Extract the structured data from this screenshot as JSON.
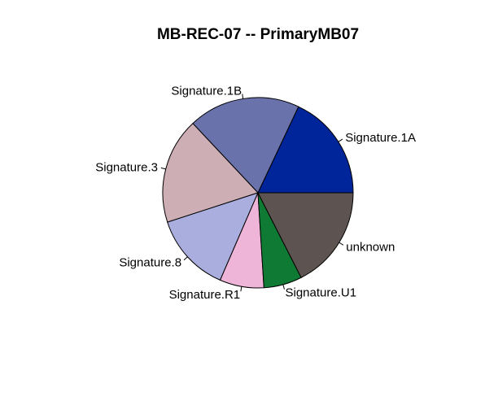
{
  "chart_data": {
    "type": "pie",
    "title": "MB-REC-07 -- PrimaryMB07",
    "start_angle_deg": 0,
    "direction": "counterclockwise",
    "slices": [
      {
        "label": "Signature.1A",
        "value": 18.0,
        "color": "#00259A"
      },
      {
        "label": "Signature.1B",
        "value": 19.0,
        "color": "#6A72AB"
      },
      {
        "label": "Signature.3",
        "value": 18.0,
        "color": "#CCAEB4"
      },
      {
        "label": "Signature.8",
        "value": 13.5,
        "color": "#A9AEDE"
      },
      {
        "label": "Signature.R1",
        "value": 7.5,
        "color": "#EEB5D9"
      },
      {
        "label": "Signature.U1",
        "value": 6.5,
        "color": "#0F7A33"
      },
      {
        "label": "unknown",
        "value": 17.5,
        "color": "#5D5350"
      }
    ]
  }
}
